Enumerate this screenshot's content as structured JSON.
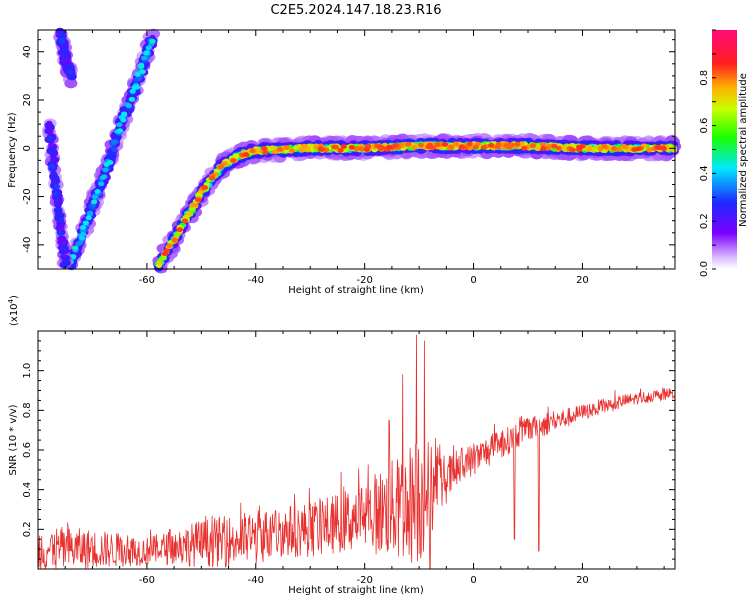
{
  "title": "C2E5.2024.147.18.23.R16",
  "colors": {
    "snr_line": "#e8312f",
    "axis": "#000000",
    "background": "#ffffff"
  },
  "chart_data": [
    {
      "type": "heatmap",
      "name": "spectrogram",
      "xlabel": "Height of straight line (km)",
      "ylabel": "Frequency (Hz)",
      "xlim": [
        -80,
        37
      ],
      "ylim": [
        -50,
        49
      ],
      "x_ticks": [
        -60,
        -40,
        -20,
        0,
        20
      ],
      "y_ticks": [
        -40,
        -20,
        0,
        20,
        40
      ],
      "colorbar": {
        "label": "Normalized spectral amplitude",
        "range": [
          0,
          1
        ],
        "ticks": [
          0.0,
          0.2,
          0.4,
          0.6,
          0.8
        ],
        "colormap": "rainbow (white-violet-blue-cyan-green-yellow-orange-red-magenta)"
      },
      "traces": [
        {
          "description": "main echo",
          "points": [
            [
              -58,
              -49
            ],
            [
              -55,
              -38
            ],
            [
              -52,
              -26
            ],
            [
              -49,
              -15
            ],
            [
              -46,
              -7
            ],
            [
              -43,
              -3
            ],
            [
              -40,
              -1
            ],
            [
              -30,
              0
            ],
            [
              -20,
              0
            ],
            [
              -10,
              1
            ],
            [
              0,
              1
            ],
            [
              10,
              1
            ],
            [
              20,
              0
            ],
            [
              37,
              0
            ]
          ],
          "peak_amplitude": 0.85
        },
        {
          "description": "diagonal echo",
          "points": [
            [
              -74,
              -48
            ],
            [
              -71,
              -30
            ],
            [
              -68,
              -12
            ],
            [
              -65,
              8
            ],
            [
              -62,
              26
            ],
            [
              -59,
              46
            ]
          ],
          "peak_amplitude": 0.45
        },
        {
          "description": "upper-left echo",
          "points": [
            [
              -76,
              49
            ],
            [
              -75,
              38
            ],
            [
              -74,
              30
            ]
          ],
          "peak_amplitude": 0.3
        },
        {
          "description": "left edge echo",
          "points": [
            [
              -78,
              10
            ],
            [
              -77,
              -10
            ],
            [
              -76,
              -30
            ],
            [
              -75,
              -48
            ]
          ],
          "peak_amplitude": 0.3
        }
      ]
    },
    {
      "type": "line",
      "name": "snr",
      "xlabel": "Height of straight line (km)",
      "ylabel": "SNR (10 * v/v)",
      "ylabel_multiplier": "(x10",
      "ylabel_multiplier_exponent": "4",
      "ylabel_multiplier_close": ")",
      "xlim": [
        -80,
        37
      ],
      "ylim": [
        0,
        1.2
      ],
      "x_ticks": [
        -60,
        -40,
        -20,
        0,
        20
      ],
      "y_ticks": [
        0.2,
        0.4,
        0.6,
        0.8,
        1.0
      ],
      "series": [
        {
          "envelope_x": [
            -80,
            -70,
            -60,
            -55,
            -50,
            -45,
            -40,
            -35,
            -30,
            -25,
            -20,
            -15,
            -12,
            -10,
            -8,
            -5,
            -2,
            0,
            3,
            6,
            8,
            10,
            12,
            14,
            17,
            20,
            25,
            30,
            35,
            37
          ],
          "envelope_base": [
            0.1,
            0.1,
            0.09,
            0.11,
            0.13,
            0.14,
            0.16,
            0.19,
            0.2,
            0.23,
            0.27,
            0.3,
            0.33,
            0.35,
            0.4,
            0.45,
            0.52,
            0.55,
            0.6,
            0.64,
            0.68,
            0.7,
            0.72,
            0.74,
            0.76,
            0.79,
            0.83,
            0.86,
            0.88,
            0.89
          ],
          "envelope_amp": [
            0.12,
            0.1,
            0.07,
            0.09,
            0.12,
            0.13,
            0.14,
            0.13,
            0.14,
            0.15,
            0.18,
            0.25,
            0.3,
            0.35,
            0.25,
            0.12,
            0.1,
            0.08,
            0.08,
            0.07,
            0.07,
            0.06,
            0.06,
            0.06,
            0.05,
            0.04,
            0.04,
            0.03,
            0.03,
            0.03
          ],
          "spikes": [
            {
              "x": -10.5,
              "y": 1.18
            },
            {
              "x": -9.0,
              "y": 1.15
            },
            {
              "x": -13.0,
              "y": 0.98
            },
            {
              "x": -15.5,
              "y": 0.75
            },
            {
              "x": 12.0,
              "y": 0.09
            },
            {
              "x": 7.5,
              "y": 0.15
            },
            {
              "x": -8.0,
              "y": 0.0
            }
          ]
        }
      ]
    }
  ]
}
